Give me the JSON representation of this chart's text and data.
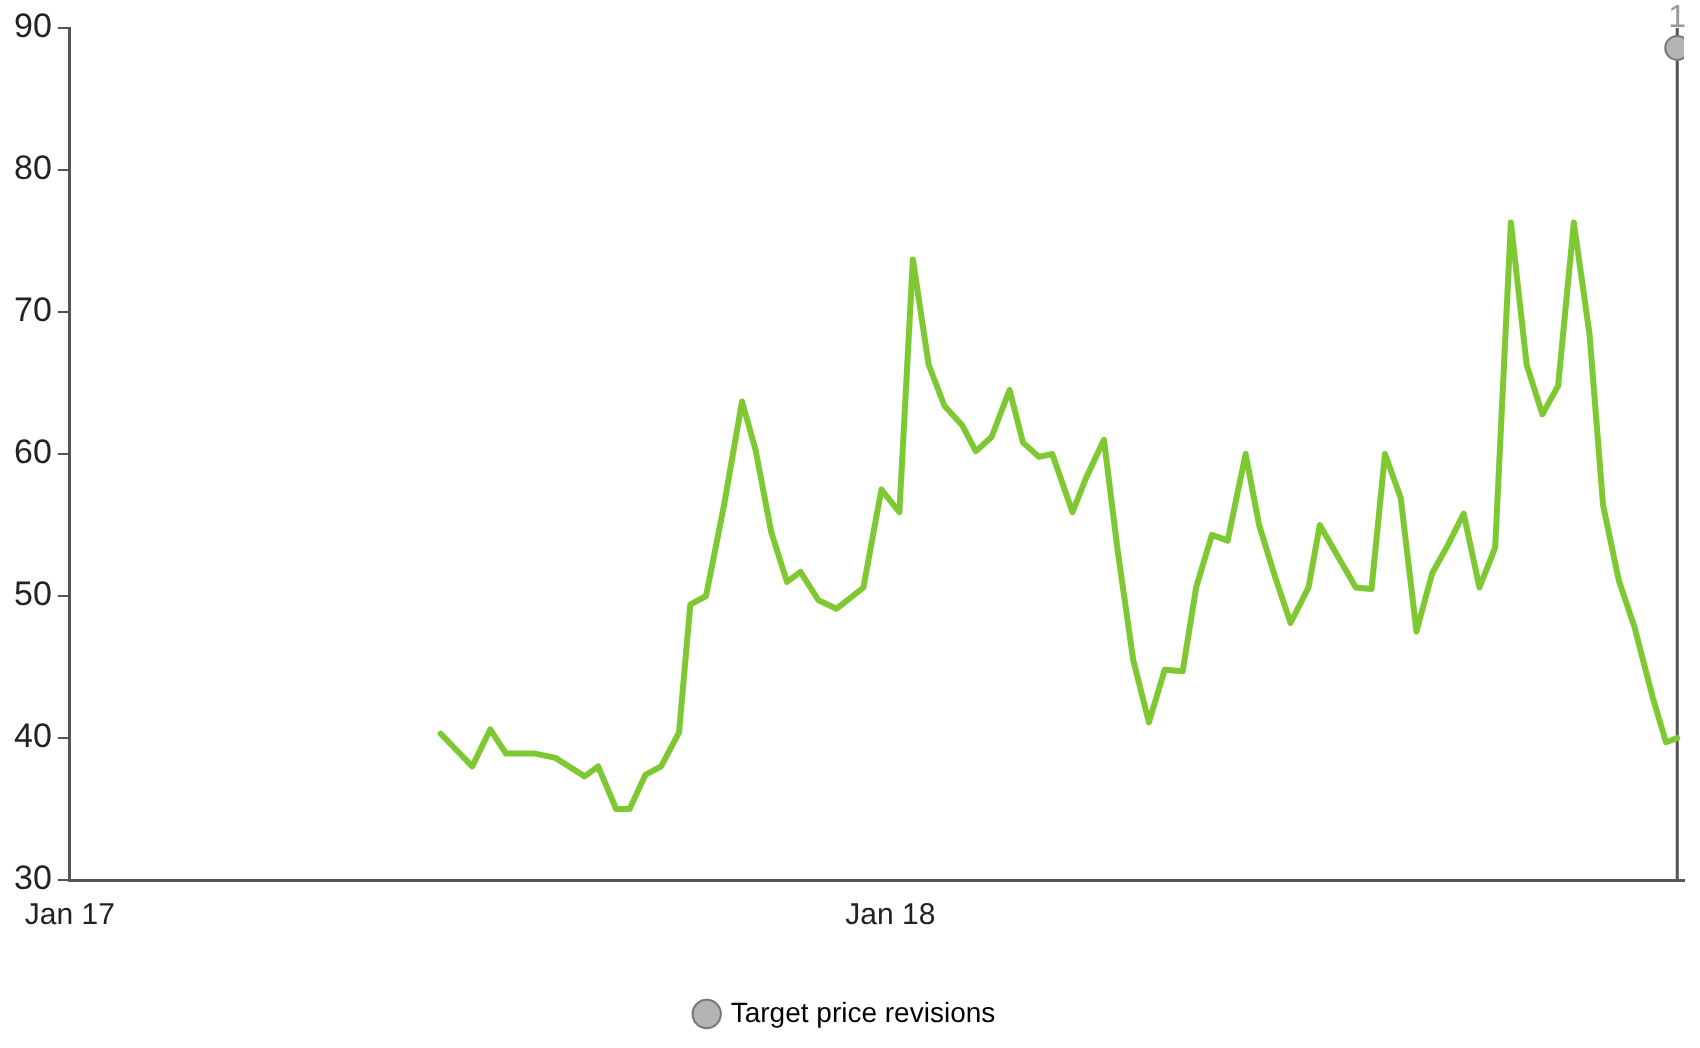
{
  "chart_data": {
    "type": "line",
    "xlim": [
      "2017-01-01",
      "2018-12-20"
    ],
    "xticks": [
      {
        "value": "2017-01-01",
        "label": "Jan 17"
      },
      {
        "value": "2018-01-01",
        "label": "Jan 18"
      }
    ],
    "ylim": [
      30,
      90
    ],
    "yticks": [
      30,
      40,
      50,
      60,
      70,
      80,
      90
    ],
    "grid": false,
    "legend": "bottom",
    "marker": "none",
    "line_style": "solid",
    "series": [
      {
        "color": "#7ec832",
        "x": [
          "2017-06-15",
          "2017-06-29",
          "2017-07-07",
          "2017-07-14",
          "2017-07-27",
          "2017-08-05",
          "2017-08-18",
          "2017-08-24",
          "2017-09-01",
          "2017-09-07",
          "2017-09-14",
          "2017-09-21",
          "2017-09-29",
          "2017-10-04",
          "2017-10-11",
          "2017-10-19",
          "2017-10-27",
          "2017-11-02",
          "2017-11-09",
          "2017-11-16",
          "2017-11-22",
          "2017-11-30",
          "2017-12-08",
          "2017-12-20",
          "2017-12-28",
          "2018-01-05",
          "2018-01-11",
          "2018-01-18",
          "2018-01-25",
          "2018-02-02",
          "2018-02-08",
          "2018-02-15",
          "2018-02-23",
          "2018-03-01",
          "2018-03-08",
          "2018-03-14",
          "2018-03-23",
          "2018-03-29",
          "2018-04-06",
          "2018-04-12",
          "2018-04-19",
          "2018-04-26",
          "2018-05-03",
          "2018-05-11",
          "2018-05-17",
          "2018-05-24",
          "2018-05-31",
          "2018-06-08",
          "2018-06-14",
          "2018-06-21",
          "2018-06-28",
          "2018-07-06",
          "2018-07-11",
          "2018-07-19",
          "2018-07-27",
          "2018-08-03",
          "2018-08-09",
          "2018-08-16",
          "2018-08-23",
          "2018-08-30",
          "2018-09-06",
          "2018-09-13",
          "2018-09-20",
          "2018-09-27",
          "2018-10-04",
          "2018-10-11",
          "2018-10-18",
          "2018-10-25",
          "2018-11-01",
          "2018-11-08",
          "2018-11-14",
          "2018-11-21",
          "2018-11-28",
          "2018-12-06",
          "2018-12-12",
          "2018-12-17"
        ],
        "values": [
          40.3,
          38.0,
          40.6,
          38.9,
          38.9,
          38.6,
          37.3,
          38.0,
          35.0,
          35.0,
          37.4,
          38.0,
          40.4,
          49.4,
          50.0,
          56.4,
          63.7,
          60.3,
          54.5,
          51.0,
          51.7,
          49.7,
          49.1,
          50.6,
          57.5,
          55.9,
          73.7,
          66.3,
          63.4,
          62.0,
          60.2,
          61.2,
          64.5,
          60.8,
          59.8,
          60.0,
          55.9,
          58.3,
          61.0,
          53.3,
          45.5,
          41.1,
          44.8,
          44.7,
          50.6,
          54.3,
          53.9,
          60.0,
          55.0,
          51.4,
          48.1,
          50.6,
          55.0,
          52.8,
          50.6,
          50.5,
          60.0,
          56.9,
          47.5,
          51.6,
          53.6,
          55.8,
          50.6,
          53.4,
          76.3,
          66.3,
          62.8,
          64.8,
          76.3,
          68.4,
          56.4,
          51.1,
          47.8,
          42.9,
          39.7,
          40.0
        ]
      },
      {
        "type": "scatter",
        "name": "Target price revisions",
        "color": "#b4b4b4",
        "marker": "circle",
        "x": [
          "2018-12-17"
        ],
        "values": [
          88.6
        ]
      }
    ],
    "ref_lines": [
      {
        "axis": "x",
        "value": "2018-12-17",
        "color": "#555555"
      }
    ],
    "annotations": [
      {
        "text": "1",
        "x": "2018-12-17",
        "y": 88.6
      }
    ]
  }
}
